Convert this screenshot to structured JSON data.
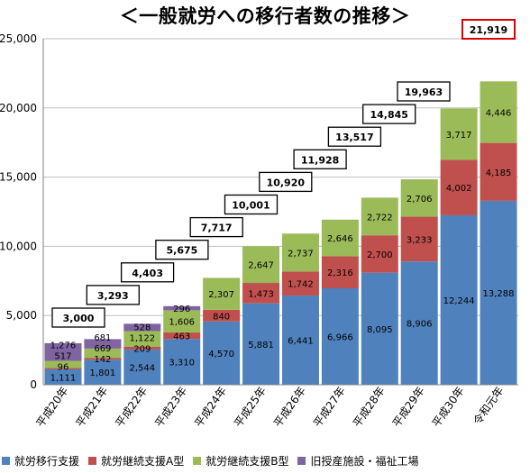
{
  "chart_data": {
    "type": "bar",
    "stacked": true,
    "title": "＜一般就労への移行者数の推移＞",
    "categories": [
      "平成20年",
      "平成21年",
      "平成22年",
      "平成23年",
      "平成24年",
      "平成25年",
      "平成26年",
      "平成27年",
      "平成28年",
      "平成29年",
      "平成30年",
      "令和元年"
    ],
    "series": [
      {
        "name": "就労移行支援",
        "color": "#4F81BD",
        "values": [
          1111,
          1801,
          2544,
          3310,
          4570,
          5881,
          6441,
          6966,
          8095,
          8906,
          12244,
          13288
        ]
      },
      {
        "name": "就労継続支援A型",
        "color": "#C0504D",
        "values": [
          96,
          142,
          209,
          463,
          840,
          1473,
          1742,
          2316,
          2700,
          3233,
          4002,
          4185
        ]
      },
      {
        "name": "就労継続支援B型",
        "color": "#9BBB59",
        "values": [
          517,
          669,
          1122,
          1606,
          2307,
          2647,
          2737,
          2646,
          2722,
          2706,
          3717,
          4446
        ]
      },
      {
        "name": "旧授産施設・福祉工場",
        "color": "#8064A2",
        "values": [
          1276,
          681,
          528,
          296,
          null,
          null,
          null,
          null,
          null,
          null,
          null,
          null
        ]
      }
    ],
    "totals": [
      3000,
      3293,
      4403,
      5675,
      7717,
      10001,
      10920,
      11928,
      13517,
      14845,
      19963,
      21919
    ],
    "highlight_total_index": 11,
    "ylim": [
      0,
      25000
    ],
    "yticks": [
      "0",
      "5,000",
      "10,000",
      "15,000",
      "20,000",
      "25,000"
    ],
    "ytick_values": [
      0,
      5000,
      10000,
      15000,
      20000,
      25000
    ],
    "grid": true,
    "legend_position": "bottom",
    "xlabel": "",
    "ylabel": ""
  }
}
